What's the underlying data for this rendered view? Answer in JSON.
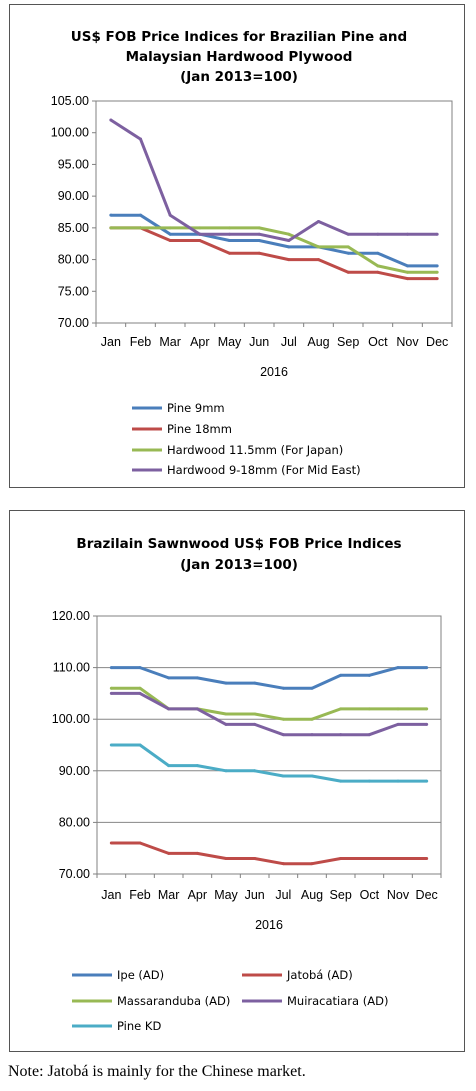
{
  "chart_data": [
    {
      "type": "line",
      "title_lines": [
        "US$ FOB Price Indices for Brazilian Pine and",
        "Malaysian Hardwood Plywood",
        "(Jan 2013=100)"
      ],
      "categories": [
        "Jan",
        "Feb",
        "Mar",
        "Apr",
        "May",
        "Jun",
        "Jul",
        "Aug",
        "Sep",
        "Oct",
        "Nov",
        "Dec"
      ],
      "xlabel": "2016",
      "ylim": [
        70,
        105
      ],
      "yticks": [
        "70.00",
        "75.00",
        "80.00",
        "85.00",
        "90.00",
        "95.00",
        "100.00",
        "105.00"
      ],
      "grid": false,
      "legend_position": "bottom",
      "series": [
        {
          "name": "Pine 9mm",
          "color": "#4a7ebb",
          "values": [
            87,
            87,
            84,
            84,
            83,
            83,
            82,
            82,
            81,
            81,
            79,
            79
          ]
        },
        {
          "name": "Pine 18mm",
          "color": "#be4b48",
          "values": [
            85,
            85,
            83,
            83,
            81,
            81,
            80,
            80,
            78,
            78,
            77,
            77
          ]
        },
        {
          "name": "Hardwood 11.5mm (For Japan)",
          "color": "#98b954",
          "values": [
            85,
            85,
            85,
            85,
            85,
            85,
            84,
            82,
            82,
            79,
            78,
            78
          ]
        },
        {
          "name": "Hardwood 9-18mm (For Mid East)",
          "color": "#7d60a0",
          "values": [
            102,
            99,
            87,
            84,
            84,
            84,
            83,
            86,
            84,
            84,
            84,
            84
          ]
        }
      ]
    },
    {
      "type": "line",
      "title_lines": [
        "Brazilain Sawnwood US$ FOB Price Indices",
        "(Jan 2013=100)"
      ],
      "categories": [
        "Jan",
        "Feb",
        "Mar",
        "Apr",
        "May",
        "Jun",
        "Jul",
        "Aug",
        "Sep",
        "Oct",
        "Nov",
        "Dec"
      ],
      "xlabel": "2016",
      "ylim": [
        70,
        120
      ],
      "yticks": [
        "70.00",
        "80.00",
        "90.00",
        "100.00",
        "110.00",
        "120.00"
      ],
      "grid": true,
      "legend_position": "bottom",
      "series": [
        {
          "name": "Ipe (AD)",
          "color": "#4a7ebb",
          "values": [
            110,
            110,
            108,
            108,
            107,
            107,
            106,
            106,
            108.5,
            108.5,
            110,
            110
          ]
        },
        {
          "name": "Jatobá (AD)",
          "color": "#be4b48",
          "values": [
            76,
            76,
            74,
            74,
            73,
            73,
            72,
            72,
            73,
            73,
            73,
            73
          ]
        },
        {
          "name": "Massaranduba (AD)",
          "color": "#98b954",
          "values": [
            106,
            106,
            102,
            102,
            101,
            101,
            100,
            100,
            102,
            102,
            102,
            102
          ]
        },
        {
          "name": "Muiracatiara (AD)",
          "color": "#7d60a0",
          "values": [
            105,
            105,
            102,
            102,
            99,
            99,
            97,
            97,
            97,
            97,
            99,
            99
          ]
        },
        {
          "name": "Pine KD",
          "color": "#4bacc6",
          "values": [
            95,
            95,
            91,
            91,
            90,
            90,
            89,
            89,
            88,
            88,
            88,
            88
          ]
        }
      ]
    }
  ],
  "note": "Note: Jatobá is mainly for the Chinese market."
}
